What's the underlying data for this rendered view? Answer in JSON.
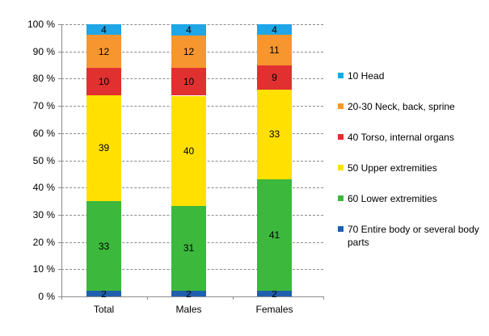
{
  "chart_data": {
    "type": "bar",
    "stacked": true,
    "percent": true,
    "title": "",
    "xlabel": "",
    "ylabel": "",
    "ylim": [
      0,
      100
    ],
    "yticks": [
      "0 %",
      "10 %",
      "20 %",
      "30 %",
      "40 %",
      "50 %",
      "60 %",
      "70 %",
      "80 %",
      "90 %",
      "100 %"
    ],
    "grid": true,
    "legend_position": "right",
    "categories": [
      "Total",
      "Males",
      "Females"
    ],
    "series": [
      {
        "name": "70 Entire body or several body parts",
        "color": "#1f5fae",
        "values": [
          2,
          2,
          2
        ]
      },
      {
        "name": "60 Lower extremities",
        "color": "#3cb83c",
        "values": [
          33,
          31,
          41
        ]
      },
      {
        "name": "50 Upper extremities",
        "color": "#ffe000",
        "values": [
          39,
          40,
          33
        ]
      },
      {
        "name": "40 Torso, internal organs",
        "color": "#e03030",
        "values": [
          10,
          10,
          9
        ]
      },
      {
        "name": "20-30 Neck, back, sprine",
        "color": "#f7962e",
        "values": [
          12,
          12,
          11
        ]
      },
      {
        "name": "10 Head",
        "color": "#1ea6e6",
        "values": [
          4,
          4,
          4
        ]
      }
    ]
  },
  "legend": {
    "items": [
      {
        "label": "10 Head",
        "color": "#1ea6e6"
      },
      {
        "label": "20-30 Neck, back, sprine",
        "color": "#f7962e"
      },
      {
        "label": "40 Torso, internal organs",
        "color": "#e03030"
      },
      {
        "label": "50 Upper extremities",
        "color": "#ffe000"
      },
      {
        "label": "60 Lower extremities",
        "color": "#3cb83c"
      },
      {
        "label": "70 Entire body or several body parts",
        "color": "#1f5fae"
      }
    ]
  }
}
